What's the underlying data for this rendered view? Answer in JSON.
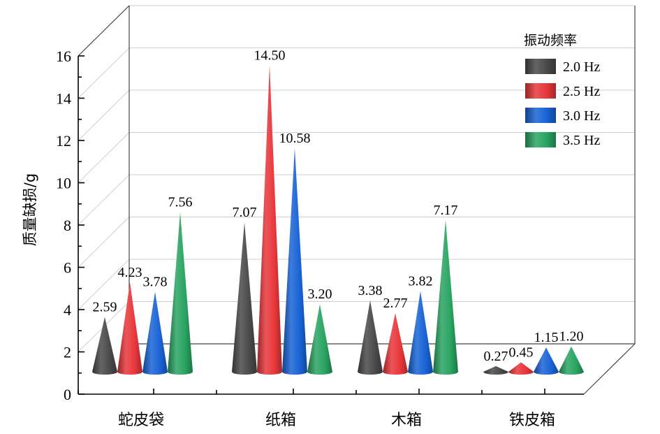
{
  "chart_data": {
    "type": "bar",
    "bar_shape": "3d-cone",
    "categories": [
      "蛇皮袋",
      "纸箱",
      "木箱",
      "铁皮箱"
    ],
    "series": [
      {
        "name": "2.0 Hz",
        "color": "#4a4a4a",
        "values": [
          2.59,
          7.07,
          3.38,
          0.27
        ]
      },
      {
        "name": "2.5 Hz",
        "color": "#e8373c",
        "values": [
          4.23,
          14.5,
          2.77,
          0.45
        ]
      },
      {
        "name": "3.0 Hz",
        "color": "#1a64d6",
        "values": [
          3.78,
          10.58,
          3.82,
          1.15
        ]
      },
      {
        "name": "3.5 Hz",
        "color": "#2aa462",
        "values": [
          7.56,
          3.2,
          7.17,
          1.2
        ]
      }
    ],
    "data_labels": [
      [
        "2.59",
        "7.07",
        "3.38",
        "0.27"
      ],
      [
        "4.23",
        "14.50",
        "2.77",
        "0.45"
      ],
      [
        "3.78",
        "10.58",
        "3.82",
        "1.15"
      ],
      [
        "7.56",
        "3.20",
        "7.17",
        "1.20"
      ]
    ],
    "ylabel": "质量缺损/g",
    "xlabel": "",
    "ylim": [
      0,
      16
    ],
    "yticks": [
      "0",
      "2",
      "4",
      "6",
      "8",
      "10",
      "12",
      "14",
      "16"
    ],
    "legend_title": "振动频率",
    "legend_position": "top-right",
    "grid": true
  }
}
